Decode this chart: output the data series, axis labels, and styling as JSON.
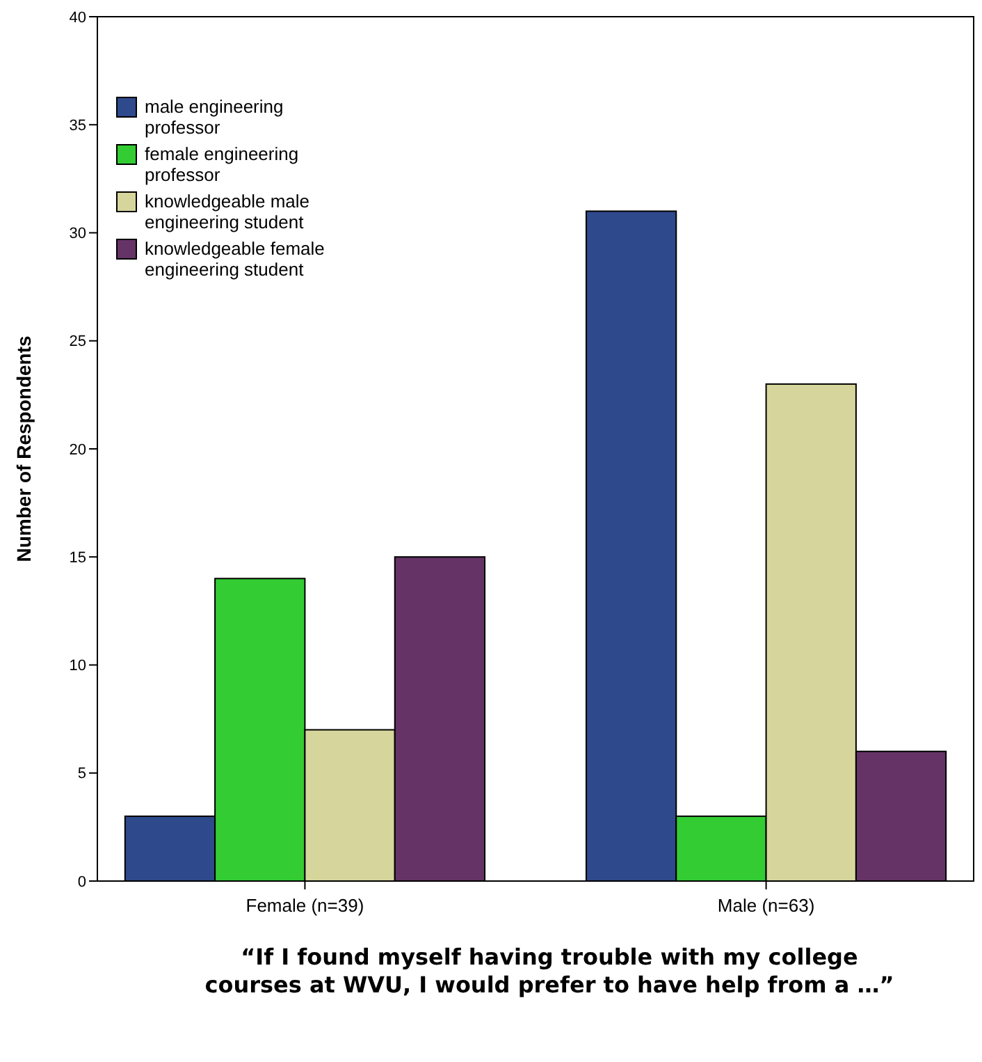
{
  "chart_data": {
    "type": "bar",
    "title": "“If I found myself having trouble with my college courses at WVU, I would prefer to have help from a …”",
    "ylabel": "Number of Respondents",
    "categories": [
      "Female (n=39)",
      "Male (n=63)"
    ],
    "series": [
      {
        "name": "male engineering professor",
        "color": "#2e4a8c",
        "values": [
          3,
          31
        ]
      },
      {
        "name": "female engineering professor",
        "color": "#33cc33",
        "values": [
          14,
          3
        ]
      },
      {
        "name": "knowledgeable male engineering student",
        "color": "#d6d69c",
        "values": [
          7,
          23
        ]
      },
      {
        "name": "knowledgeable female engineering student",
        "color": "#663366",
        "values": [
          15,
          6
        ]
      }
    ],
    "ylim": [
      0,
      40
    ],
    "yticks": [
      0,
      5,
      10,
      15,
      20,
      25,
      30,
      35,
      40
    ],
    "grid": false,
    "legend": "top left"
  }
}
